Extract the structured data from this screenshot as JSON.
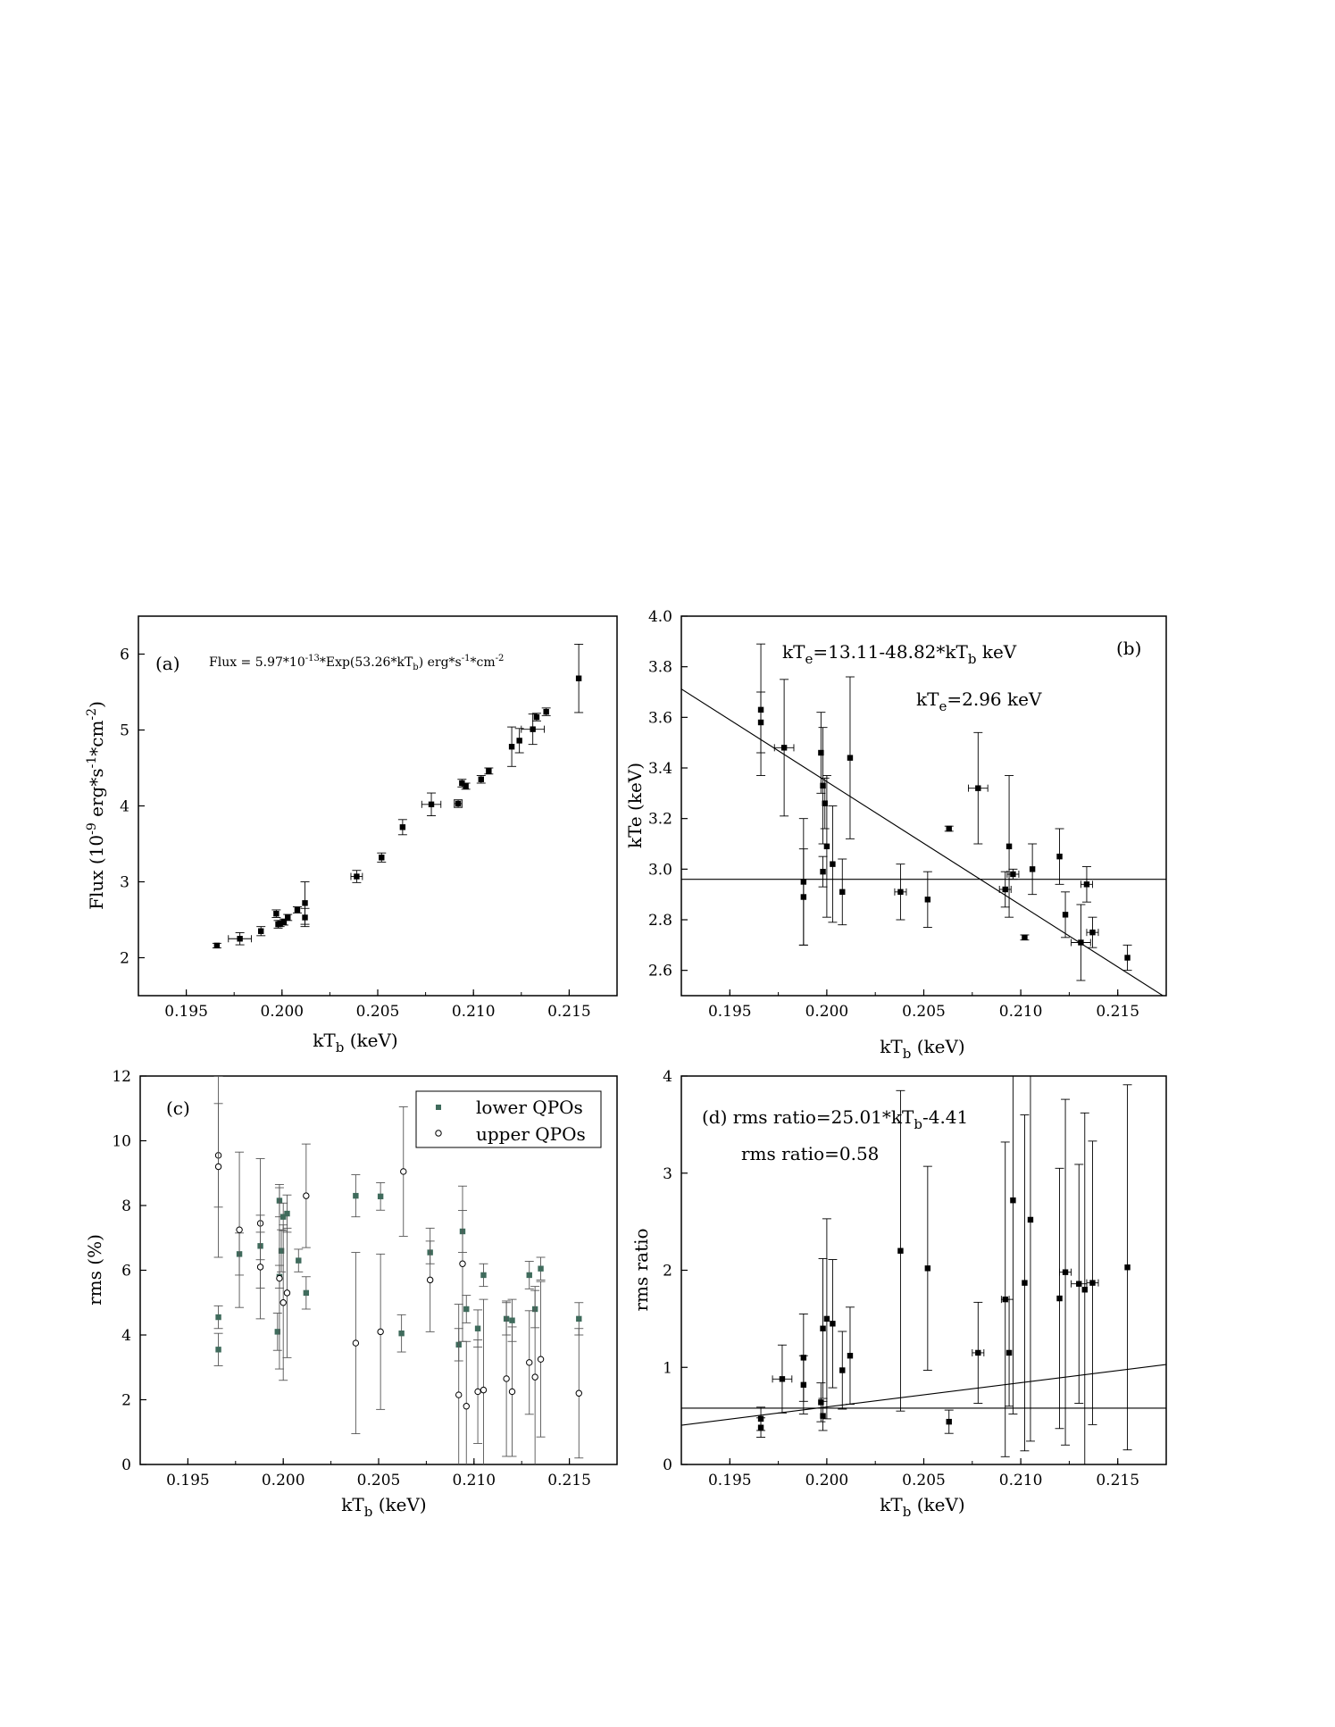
{
  "figure": {
    "panels": [
      {
        "id": "a",
        "tag": "(a)"
      },
      {
        "id": "b",
        "tag": "(b)"
      },
      {
        "id": "c",
        "tag": "(c)"
      },
      {
        "id": "d",
        "tag": "(d)"
      }
    ]
  },
  "chart_data": [
    {
      "panel": "a",
      "type": "scatter",
      "title": "",
      "xlabel": "kT_b (keV)",
      "ylabel": "Flux (10^-9 erg*s^-1*cm^-2)",
      "xlim": [
        0.1925,
        0.2175
      ],
      "ylim": [
        1.5,
        6.5
      ],
      "xticks": [
        0.195,
        0.2,
        0.205,
        0.21,
        0.215
      ],
      "xtick_labels": [
        "0.195",
        "0.200",
        "0.205",
        "0.210",
        "0.215"
      ],
      "yticks": [
        2,
        3,
        4,
        5,
        6
      ],
      "ytick_labels": [
        "2",
        "3",
        "4",
        "5",
        "6"
      ],
      "annotations": [
        "Flux = 5.97*10^-13*Exp(53.26*kT_b) erg*s^-1*cm^-2"
      ],
      "fit": {
        "type": "exponential",
        "A": 5.97,
        "B": 53.26,
        "C": -13
      },
      "series": [
        {
          "x": [
            0.1966,
            0.1978,
            0.1989,
            0.1997,
            0.1998,
            0.1999,
            0.2001,
            0.2003,
            0.2008,
            0.2012,
            0.2012,
            0.2039,
            0.2052,
            0.2063,
            0.2078,
            0.2092,
            0.2094,
            0.2096,
            0.2104,
            0.2108,
            0.212,
            0.2124,
            0.2131,
            0.2133,
            0.2138,
            0.2155
          ],
          "y": [
            2.16,
            2.25,
            2.35,
            2.58,
            2.44,
            2.45,
            2.47,
            2.53,
            2.63,
            2.72,
            2.53,
            3.07,
            3.32,
            3.72,
            4.02,
            4.03,
            4.3,
            4.26,
            4.35,
            4.46,
            4.78,
            4.86,
            5.01,
            5.17,
            5.24,
            5.68
          ],
          "yerr": [
            0.03,
            0.08,
            0.06,
            0.05,
            0.05,
            0.04,
            0.04,
            0.04,
            0.04,
            0.28,
            0.12,
            0.08,
            0.06,
            0.1,
            0.15,
            0.05,
            0.05,
            0.04,
            0.05,
            0.04,
            0.26,
            0.16,
            0.2,
            0.05,
            0.05,
            0.45
          ],
          "xerr": [
            0,
            0.0006,
            0,
            0,
            0,
            0,
            0,
            0,
            0,
            0,
            0,
            0.0003,
            0,
            0,
            0.0005,
            0.0002,
            0,
            0,
            0,
            0,
            0,
            0,
            0.0006,
            0,
            0,
            0
          ]
        }
      ]
    },
    {
      "panel": "b",
      "type": "scatter",
      "title": "",
      "xlabel": "kT_b (keV)",
      "ylabel": "kTe (keV)",
      "xlim": [
        0.1925,
        0.2175
      ],
      "ylim": [
        2.5,
        4.0
      ],
      "xticks": [
        0.195,
        0.2,
        0.205,
        0.21,
        0.215
      ],
      "xtick_labels": [
        "0.195",
        "0.200",
        "0.205",
        "0.210",
        "0.215"
      ],
      "yticks": [
        2.6,
        2.8,
        3.0,
        3.2,
        3.4,
        3.6,
        3.8,
        4.0
      ],
      "ytick_labels": [
        "2.6",
        "2.8",
        "3.0",
        "3.2",
        "3.4",
        "3.6",
        "3.8",
        "4.0"
      ],
      "annotations": [
        "kT_e=13.11-48.82*kT_b keV",
        "kT_e=2.96 keV"
      ],
      "fit_line": {
        "intercept": 13.11,
        "slope": -48.82
      },
      "hline": 2.96,
      "series": [
        {
          "x": [
            0.1966,
            0.1966,
            0.1978,
            0.1988,
            0.1988,
            0.1997,
            0.1998,
            0.1998,
            0.1999,
            0.2,
            0.2003,
            0.2008,
            0.2012,
            0.2038,
            0.2052,
            0.2063,
            0.2078,
            0.2092,
            0.2094,
            0.2096,
            0.2102,
            0.2106,
            0.212,
            0.2123,
            0.2131,
            0.2134,
            0.2137,
            0.2155
          ],
          "y": [
            3.63,
            3.58,
            3.48,
            2.89,
            2.95,
            3.46,
            3.33,
            2.99,
            3.26,
            3.09,
            3.02,
            2.91,
            3.44,
            2.91,
            2.88,
            3.16,
            3.32,
            2.92,
            3.09,
            2.98,
            2.73,
            3.0,
            3.05,
            2.82,
            2.71,
            2.94,
            2.75,
            2.65
          ],
          "yerr": [
            0.26,
            0.12,
            0.27,
            0.19,
            0.25,
            0.16,
            0.23,
            0.06,
            0.1,
            0.28,
            0.23,
            0.13,
            0.32,
            0.11,
            0.11,
            0.01,
            0.22,
            0.07,
            0.28,
            0.02,
            0.01,
            0.1,
            0.11,
            0.09,
            0.15,
            0.07,
            0.06,
            0.05
          ],
          "xerr": [
            0,
            0,
            0.0005,
            0,
            0,
            0,
            0,
            0,
            0,
            0,
            0,
            0,
            0,
            0.0003,
            0,
            0,
            0.0005,
            0.0003,
            0,
            0.0003,
            0,
            0,
            0,
            0,
            0.0005,
            0.0003,
            0.0003,
            0
          ]
        }
      ]
    },
    {
      "panel": "c",
      "type": "scatter",
      "title": "",
      "xlabel": "kT_b (keV)",
      "ylabel": "rms (%)",
      "xlim": [
        0.1925,
        0.2175
      ],
      "ylim": [
        0,
        12
      ],
      "xticks": [
        0.195,
        0.2,
        0.205,
        0.21,
        0.215
      ],
      "xtick_labels": [
        "0.195",
        "0.200",
        "0.205",
        "0.210",
        "0.215"
      ],
      "yticks": [
        0,
        2,
        4,
        6,
        8,
        10,
        12
      ],
      "ytick_labels": [
        "0",
        "2",
        "4",
        "6",
        "8",
        "10",
        "12"
      ],
      "legend_position": "top-right",
      "series": [
        {
          "name": "lower QPOs",
          "color": "#3f6b5c",
          "marker": "filled-square",
          "x": [
            0.1966,
            0.1966,
            0.1977,
            0.1988,
            0.1997,
            0.1998,
            0.1998,
            0.1999,
            0.2,
            0.2002,
            0.2008,
            0.2012,
            0.2038,
            0.2051,
            0.2062,
            0.2077,
            0.2092,
            0.2094,
            0.2096,
            0.2102,
            0.2105,
            0.2117,
            0.212,
            0.2129,
            0.2132,
            0.2135,
            0.2155
          ],
          "y": [
            4.55,
            3.55,
            6.5,
            6.75,
            4.1,
            5.8,
            8.15,
            6.6,
            7.65,
            7.75,
            6.3,
            5.3,
            8.3,
            8.28,
            4.05,
            6.55,
            3.7,
            7.2,
            4.8,
            4.2,
            5.85,
            4.5,
            4.45,
            5.85,
            4.8,
            6.05,
            4.5
          ]
        },
        {
          "name": "upper QPOs",
          "color": "#000000",
          "marker": "open-circle",
          "x": [
            0.1966,
            0.1966,
            0.1977,
            0.1988,
            0.1988,
            0.1998,
            0.2,
            0.2002,
            0.2012,
            0.2038,
            0.2051,
            0.2063,
            0.2077,
            0.2092,
            0.2094,
            0.2096,
            0.2102,
            0.2105,
            0.2117,
            0.212,
            0.2129,
            0.2132,
            0.2135,
            0.2155
          ],
          "y": [
            9.55,
            9.2,
            7.25,
            7.45,
            6.1,
            5.75,
            5.0,
            5.3,
            8.3,
            3.75,
            4.1,
            9.05,
            5.7,
            2.15,
            6.2,
            1.8,
            2.25,
            2.3,
            2.65,
            2.25,
            3.15,
            2.7,
            3.25,
            2.2
          ]
        }
      ]
    },
    {
      "panel": "d",
      "type": "scatter",
      "title": "",
      "xlabel": "kT_b (keV)",
      "ylabel": "rms ratio",
      "xlim": [
        0.1925,
        0.2175
      ],
      "ylim": [
        0,
        4
      ],
      "xticks": [
        0.195,
        0.2,
        0.205,
        0.21,
        0.215
      ],
      "xtick_labels": [
        "0.195",
        "0.200",
        "0.205",
        "0.210",
        "0.215"
      ],
      "yticks": [
        0,
        1,
        2,
        3,
        4
      ],
      "ytick_labels": [
        "0",
        "1",
        "2",
        "3",
        "4"
      ],
      "annotations": [
        "rms ratio=25.01*kT_b-4.41",
        "rms ratio=0.58"
      ],
      "fit_line": {
        "intercept": -4.41,
        "slope": 25.01
      },
      "hline": 0.58,
      "series": [
        {
          "x": [
            0.1966,
            0.1966,
            0.1977,
            0.1988,
            0.1988,
            0.1997,
            0.1998,
            0.1998,
            0.2,
            0.2003,
            0.2008,
            0.2012,
            0.2038,
            0.2052,
            0.2063,
            0.2078,
            0.2092,
            0.2094,
            0.2096,
            0.2102,
            0.2105,
            0.212,
            0.2123,
            0.213,
            0.2133,
            0.2137,
            0.2155
          ],
          "y": [
            0.47,
            0.38,
            0.88,
            1.1,
            0.82,
            0.64,
            1.4,
            0.5,
            1.5,
            1.45,
            0.97,
            1.12,
            2.2,
            2.02,
            0.44,
            1.15,
            1.7,
            1.15,
            2.72,
            1.87,
            2.52,
            1.71,
            1.98,
            1.86,
            1.8,
            1.87,
            2.03
          ],
          "yerr": [
            0.12,
            0.1,
            0.35,
            0.45,
            0.3,
            0.2,
            0.72,
            0.15,
            1.03,
            0.66,
            0.4,
            0.5,
            1.65,
            1.05,
            0.12,
            0.52,
            1.62,
            0.55,
            2.2,
            1.73,
            2.28,
            1.34,
            1.78,
            1.23,
            1.82,
            1.46,
            1.88
          ],
          "xerr": [
            0,
            0,
            0.0005,
            0,
            0,
            0,
            0,
            0,
            0,
            0,
            0,
            0,
            0,
            0,
            0,
            0.0003,
            0.0002,
            0,
            0,
            0,
            0,
            0,
            0.0003,
            0.0004,
            0,
            0.0003,
            0
          ]
        }
      ]
    }
  ]
}
